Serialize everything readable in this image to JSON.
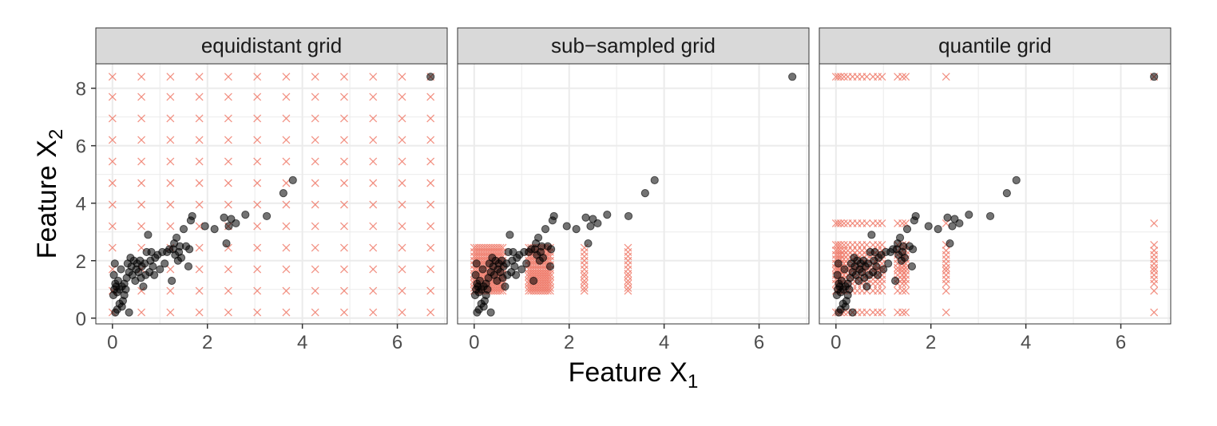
{
  "chart_data": {
    "type": "scatter",
    "xlabel": "Feature X",
    "xlabel_sub": "1",
    "ylabel": "Feature X",
    "ylabel_sub": "2",
    "xlim": [
      -0.35,
      7.05
    ],
    "ylim": [
      -0.2,
      8.85
    ],
    "xticks": [
      "0",
      "2",
      "4",
      "6"
    ],
    "xtick_values": [
      0,
      2,
      4,
      6
    ],
    "yticks": [
      "0",
      "2",
      "4",
      "6",
      "8"
    ],
    "ytick_values": [
      0,
      2,
      4,
      6,
      8
    ],
    "colors": {
      "points": "#000000",
      "grid_marks": "#f08070",
      "strip_fill": "#d9d9d9",
      "gridline": "#ebebeb"
    },
    "data_points": [
      [
        0.02,
        0.8
      ],
      [
        0.04,
        1.0
      ],
      [
        0.06,
        1.2
      ],
      [
        0.03,
        1.5
      ],
      [
        0.05,
        1.9
      ],
      [
        0.08,
        1.1
      ],
      [
        0.1,
        0.9
      ],
      [
        0.12,
        1.3
      ],
      [
        0.15,
        1.0
      ],
      [
        0.18,
        1.7
      ],
      [
        0.2,
        1.1
      ],
      [
        0.22,
        0.6
      ],
      [
        0.25,
        1.2
      ],
      [
        0.28,
        1.0
      ],
      [
        0.3,
        1.4
      ],
      [
        0.06,
        0.2
      ],
      [
        0.1,
        0.3
      ],
      [
        0.15,
        0.5
      ],
      [
        0.2,
        0.4
      ],
      [
        0.25,
        0.8
      ],
      [
        0.35,
        0.2
      ],
      [
        0.32,
        1.9
      ],
      [
        0.35,
        1.6
      ],
      [
        0.38,
        2.1
      ],
      [
        0.4,
        1.8
      ],
      [
        0.42,
        1.5
      ],
      [
        0.45,
        2.0
      ],
      [
        0.48,
        1.3
      ],
      [
        0.5,
        1.7
      ],
      [
        0.52,
        1.9
      ],
      [
        0.55,
        1.6
      ],
      [
        0.58,
        2.0
      ],
      [
        0.6,
        1.4
      ],
      [
        0.62,
        1.8
      ],
      [
        0.65,
        1.1
      ],
      [
        0.68,
        1.9
      ],
      [
        0.7,
        1.5
      ],
      [
        0.72,
        2.3
      ],
      [
        0.75,
        2.9
      ],
      [
        0.78,
        1.6
      ],
      [
        0.8,
        2.0
      ],
      [
        0.82,
        2.3
      ],
      [
        0.85,
        1.8
      ],
      [
        0.88,
        1.5
      ],
      [
        0.9,
        2.1
      ],
      [
        0.95,
        2.2
      ],
      [
        1.0,
        1.7
      ],
      [
        1.05,
        2.3
      ],
      [
        1.1,
        1.9
      ],
      [
        1.15,
        2.3
      ],
      [
        1.2,
        2.4
      ],
      [
        1.25,
        1.3
      ],
      [
        1.28,
        2.4
      ],
      [
        1.3,
        2.6
      ],
      [
        1.32,
        2.2
      ],
      [
        1.35,
        2.8
      ],
      [
        1.38,
        2.0
      ],
      [
        1.4,
        2.3
      ],
      [
        1.42,
        2.5
      ],
      [
        1.45,
        2.1
      ],
      [
        1.5,
        3.1
      ],
      [
        1.55,
        2.5
      ],
      [
        1.6,
        1.8
      ],
      [
        1.62,
        2.4
      ],
      [
        1.65,
        3.4
      ],
      [
        1.68,
        3.55
      ],
      [
        1.95,
        3.2
      ],
      [
        2.15,
        3.1
      ],
      [
        2.35,
        3.5
      ],
      [
        2.4,
        2.6
      ],
      [
        2.45,
        3.2
      ],
      [
        2.5,
        3.45
      ],
      [
        2.6,
        3.3
      ],
      [
        2.8,
        3.6
      ],
      [
        3.25,
        3.55
      ],
      [
        3.6,
        4.35
      ],
      [
        3.8,
        4.8
      ],
      [
        6.7,
        8.4
      ]
    ],
    "panels": [
      {
        "title": "equidistant grid",
        "grid_x": [
          0.0,
          0.61,
          1.22,
          1.83,
          2.44,
          3.05,
          3.66,
          4.27,
          4.88,
          5.49,
          6.1,
          6.7
        ],
        "grid_y": [
          0.2,
          0.95,
          1.7,
          2.45,
          3.2,
          3.95,
          4.7,
          5.45,
          6.2,
          6.95,
          7.7,
          8.4
        ],
        "grid_mode": "full",
        "extra_grid": []
      },
      {
        "title": "sub−sampled grid",
        "grid_x": [
          0.0,
          0.05,
          0.1,
          0.15,
          0.2,
          0.25,
          0.3,
          0.35,
          0.4,
          0.45,
          0.5,
          0.55,
          0.6,
          1.15,
          1.2,
          1.25,
          1.3,
          1.35,
          1.4,
          1.45,
          1.5,
          1.55,
          1.6,
          2.32,
          3.24
        ],
        "grid_y": [
          0.95,
          1.05,
          1.2,
          1.3,
          1.45,
          1.55,
          1.7,
          1.85,
          2.0,
          2.15,
          2.3,
          2.45
        ],
        "grid_mode": "full",
        "extra_grid": []
      },
      {
        "title": "quantile grid",
        "grid_x": [
          0.0,
          0.05,
          0.1,
          0.17,
          0.25,
          0.35,
          0.45,
          0.55,
          0.65,
          0.78,
          0.88,
          0.97,
          1.3,
          1.4,
          1.47,
          2.32,
          6.7
        ],
        "grid_y": [
          0.2,
          0.95,
          1.2,
          1.35,
          1.5,
          1.65,
          1.75,
          1.9,
          2.05,
          2.2,
          2.35,
          2.55,
          3.3,
          8.4
        ],
        "grid_mode": "full",
        "extra_grid": []
      }
    ]
  }
}
